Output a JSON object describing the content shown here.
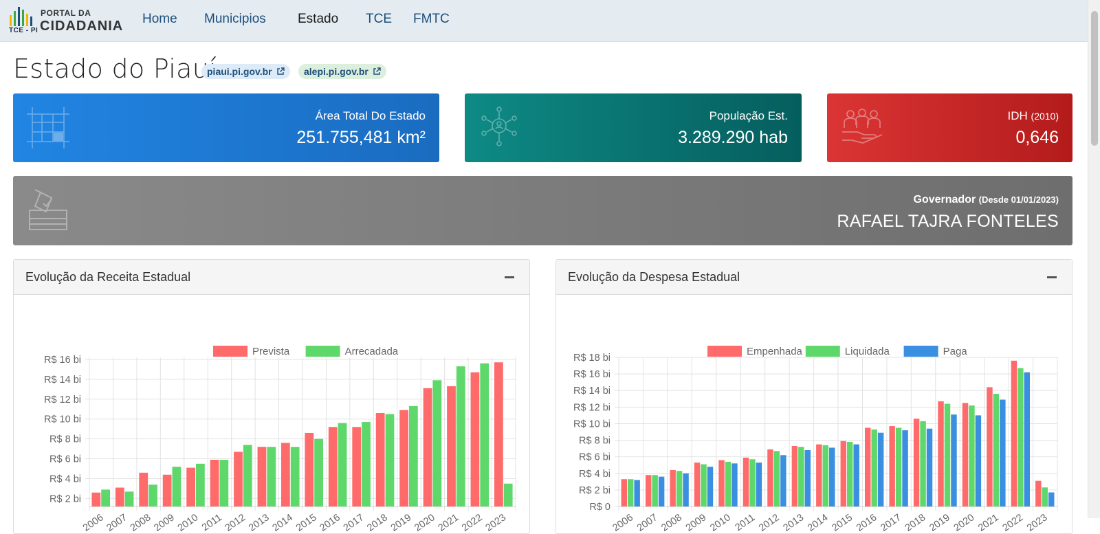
{
  "nav": {
    "logo_tce": "TCE - PI",
    "logo_portal": "PORTAL DA",
    "logo_cidadania": "CIDADANIA",
    "items": [
      {
        "label": "Home",
        "active": false
      },
      {
        "label": "Municipios",
        "active": false
      },
      {
        "label": "Estado",
        "active": true
      },
      {
        "label": "TCE",
        "active": false
      },
      {
        "label": "FMTC",
        "active": false
      }
    ]
  },
  "page": {
    "title": "Estado do Piauí",
    "links": [
      "piaui.pi.gov.br",
      "alepi.pi.gov.br"
    ]
  },
  "cards": {
    "area": {
      "label": "Área Total Do Estado",
      "value": "251.755,481 km²",
      "icon": "map-grid-icon",
      "color": "#2185e3"
    },
    "populacao": {
      "label": "População Est.",
      "value": "3.289.290 hab",
      "icon": "people-network-icon",
      "color": "#0e8a85"
    },
    "idh": {
      "label": "IDH",
      "label_suffix": "(2010)",
      "value": "0,646",
      "icon": "people-hand-icon",
      "color": "#db3535"
    },
    "governador": {
      "label": "Governador",
      "label_suffix": "(Desde 01/01/2023)",
      "value": "RAFAEL TAJRA FONTELES",
      "icon": "ballot-box-icon",
      "color": "#8a8a8a"
    }
  },
  "panels": {
    "receita": {
      "title": "Evolução da Receita Estadual"
    },
    "despesa": {
      "title": "Evolução da Despesa Estadual"
    }
  },
  "chart_data": [
    {
      "type": "bar",
      "categories": [
        "2006",
        "2007",
        "2008",
        "2009",
        "2010",
        "2011",
        "2012",
        "2013",
        "2014",
        "2015",
        "2016",
        "2017",
        "2018",
        "2019",
        "2020",
        "2021",
        "2022",
        "2023"
      ],
      "series": [
        {
          "name": "Prevista",
          "color": "#ff6b6b",
          "values": [
            2.6,
            3.1,
            4.6,
            4.4,
            5.1,
            5.9,
            6.7,
            7.2,
            7.6,
            8.6,
            9.2,
            9.2,
            10.6,
            10.9,
            13.1,
            13.3,
            14.7,
            15.7
          ]
        },
        {
          "name": "Arrecadada",
          "color": "#5fd86b",
          "values": [
            2.9,
            2.7,
            3.4,
            5.2,
            5.5,
            5.9,
            7.4,
            7.2,
            7.2,
            8.0,
            9.6,
            9.7,
            10.5,
            11.3,
            13.9,
            15.3,
            15.6,
            3.5
          ]
        }
      ],
      "yticks": [
        "R$ 2 bi",
        "R$ 4 bi",
        "R$ 6 bi",
        "R$ 8 bi",
        "R$ 10 bi",
        "R$ 12 bi",
        "R$ 14 bi",
        "R$ 16 bi"
      ],
      "ylim": [
        1.2,
        16.2
      ],
      "grid": true,
      "legend": "top-center"
    },
    {
      "type": "bar",
      "categories": [
        "2006",
        "2007",
        "2008",
        "2009",
        "2010",
        "2011",
        "2012",
        "2013",
        "2014",
        "2015",
        "2016",
        "2017",
        "2018",
        "2019",
        "2020",
        "2021",
        "2022",
        "2023"
      ],
      "series": [
        {
          "name": "Empenhada",
          "color": "#ff6b6b",
          "values": [
            3.3,
            3.8,
            4.4,
            5.3,
            5.6,
            5.9,
            6.9,
            7.3,
            7.5,
            7.9,
            9.5,
            9.7,
            10.6,
            12.7,
            12.5,
            14.4,
            17.6,
            3.1
          ]
        },
        {
          "name": "Liquidada",
          "color": "#5fd86b",
          "values": [
            3.3,
            3.8,
            4.3,
            5.1,
            5.4,
            5.7,
            6.7,
            7.2,
            7.4,
            7.8,
            9.3,
            9.5,
            10.3,
            12.4,
            12.2,
            13.6,
            16.7,
            2.3
          ]
        },
        {
          "name": "Paga",
          "color": "#3b8fe0",
          "values": [
            3.2,
            3.6,
            4.0,
            4.8,
            5.2,
            5.3,
            6.2,
            6.8,
            7.1,
            7.5,
            8.9,
            9.2,
            9.4,
            11.1,
            11.0,
            12.9,
            16.2,
            1.7
          ]
        }
      ],
      "yticks": [
        "R$ 0",
        "R$ 2 bi",
        "R$ 4 bi",
        "R$ 6 bi",
        "R$ 8 bi",
        "R$ 10 bi",
        "R$ 12 bi",
        "R$ 14 bi",
        "R$ 16 bi",
        "R$ 18 bi"
      ],
      "ylim": [
        0,
        18
      ],
      "grid": true,
      "legend": "top-center"
    }
  ]
}
